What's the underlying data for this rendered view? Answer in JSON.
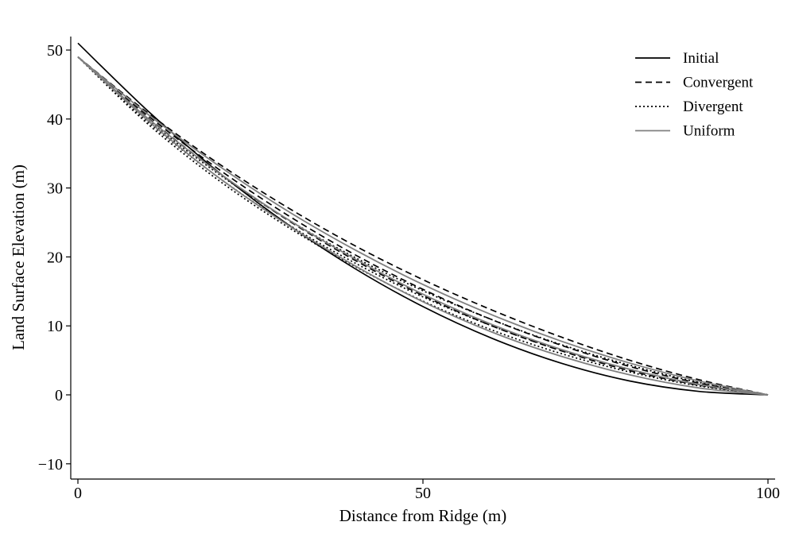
{
  "chart_data": {
    "type": "line",
    "title": "",
    "xlabel": "Distance from Ridge (m)",
    "ylabel": "Land Surface Elevation (m)",
    "xlim": [
      -1,
      101
    ],
    "ylim": [
      -12,
      52
    ],
    "xticks": [
      0,
      50,
      100
    ],
    "yticks": [
      -10,
      0,
      10,
      20,
      30,
      40,
      50
    ],
    "grid": false,
    "legend_position": "top-right",
    "colors": {
      "black": "#000000",
      "gray": "#808080"
    },
    "legend": [
      {
        "name": "Initial",
        "style": "solid",
        "color": "#000000"
      },
      {
        "name": "Convergent",
        "style": "dashed",
        "color": "#000000"
      },
      {
        "name": "Divergent",
        "style": "dotted",
        "color": "#000000"
      },
      {
        "name": "Uniform",
        "style": "solid",
        "color": "#808080"
      }
    ],
    "x": [
      0,
      10,
      20,
      30,
      40,
      50,
      60,
      70,
      80,
      90,
      100
    ],
    "series": [
      {
        "style": "solid",
        "color": "#000000",
        "values": [
          51,
          41.3,
          32.6,
          25.0,
          18.4,
          12.8,
          8.2,
          4.6,
          2.0,
          0.5,
          0
        ]
      },
      {
        "style": "dashed",
        "color": "#000000",
        "values": [
          49,
          41.0,
          33.8,
          27.4,
          21.7,
          16.7,
          12.3,
          8.4,
          5.0,
          2.2,
          0
        ]
      },
      {
        "style": "dashed",
        "color": "#000000",
        "values": [
          49,
          40.6,
          33.0,
          26.3,
          20.4,
          15.3,
          10.9,
          7.2,
          4.1,
          1.7,
          0
        ]
      },
      {
        "style": "dashed",
        "color": "#000000",
        "values": [
          49,
          40.3,
          32.5,
          25.6,
          19.6,
          14.4,
          10.0,
          6.4,
          3.5,
          1.4,
          0
        ]
      },
      {
        "style": "dotted",
        "color": "#000000",
        "values": [
          49,
          40.0,
          32.3,
          25.7,
          20.0,
          15.1,
          10.9,
          7.3,
          4.3,
          1.8,
          0
        ]
      },
      {
        "style": "dotted",
        "color": "#000000",
        "values": [
          49,
          39.7,
          31.8,
          25.0,
          19.2,
          14.2,
          10.0,
          6.5,
          3.7,
          1.5,
          0
        ]
      },
      {
        "style": "dotted",
        "color": "#000000",
        "values": [
          49,
          39.4,
          31.4,
          24.6,
          18.7,
          13.6,
          9.4,
          6.0,
          3.3,
          1.3,
          0
        ]
      },
      {
        "style": "solid",
        "color": "#808080",
        "values": [
          49,
          40.8,
          33.5,
          26.9,
          21.1,
          16.0,
          11.6,
          7.8,
          4.6,
          2.0,
          0
        ]
      },
      {
        "style": "solid",
        "color": "#808080",
        "values": [
          49,
          40.2,
          32.5,
          25.7,
          19.8,
          14.6,
          10.2,
          6.6,
          3.7,
          1.5,
          0
        ]
      },
      {
        "style": "solid",
        "color": "#808080",
        "values": [
          49,
          39.9,
          31.8,
          24.9,
          18.8,
          13.5,
          9.1,
          5.6,
          2.9,
          1.0,
          0
        ]
      }
    ]
  }
}
